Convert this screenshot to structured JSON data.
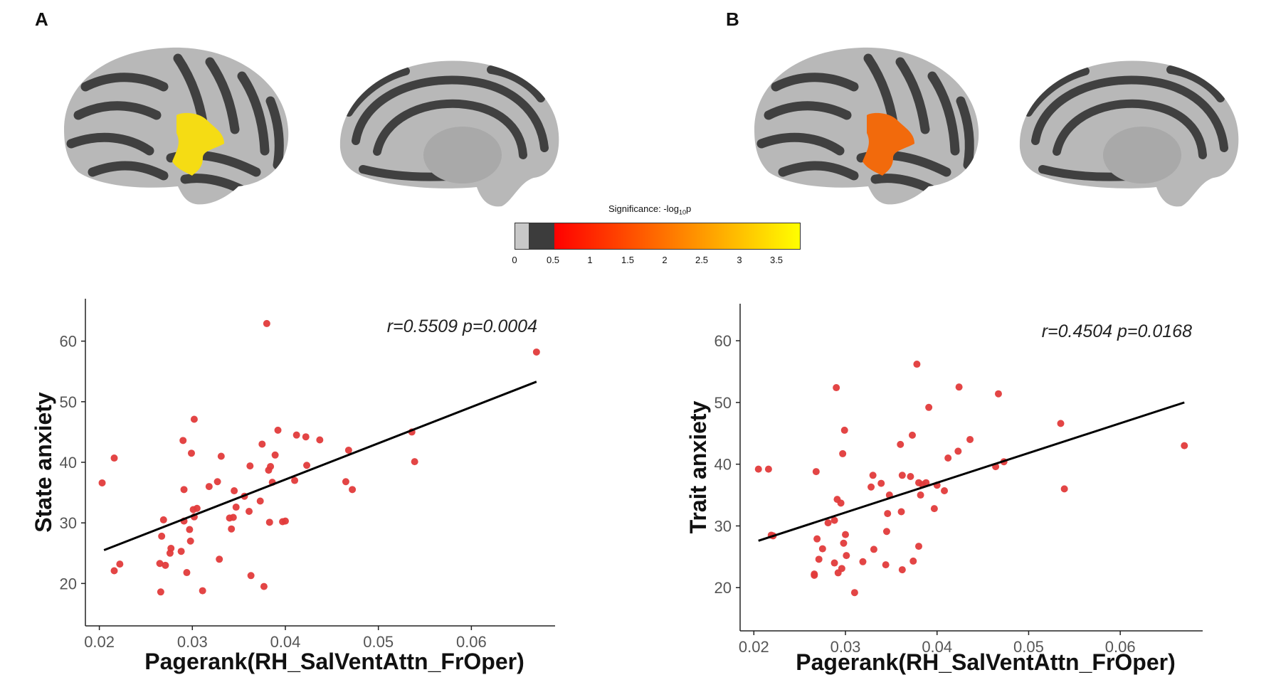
{
  "panels": [
    {
      "label": "A",
      "lateral_view": "left-lateral",
      "medial_view": "left-medial",
      "highlight_color": "#f5dc14"
    },
    {
      "label": "B",
      "lateral_view": "left-lateral",
      "medial_view": "left-medial",
      "highlight_color": "#f26a0c"
    }
  ],
  "colorbar": {
    "title_main": "Significance: -log",
    "title_sub": "10",
    "title_end": "p",
    "ticks": [
      "0",
      "0.5",
      "1",
      "1.5",
      "2",
      "2.5",
      "3",
      "3.5"
    ],
    "colors": {
      "gray_light": "#c8c8c8",
      "gray_dark": "#3c3c3c",
      "red": "#ff0000",
      "orange": "#ff8c00",
      "yellow": "#ffff00"
    }
  },
  "chart_data": [
    {
      "type": "scatter",
      "panel": "A",
      "annotation": "r=0.5509 p=0.0004",
      "xlabel": "Pagerank(RH_SalVentAttn_FrOper)",
      "ylabel": "State anxiety",
      "xlim": [
        0.0185,
        0.069
      ],
      "ylim": [
        13,
        67
      ],
      "xticks": [
        0.02,
        0.03,
        0.04,
        0.05,
        0.06
      ],
      "xtick_labels": [
        "0.02",
        "0.03",
        "0.04",
        "0.05",
        "0.06"
      ],
      "yticks": [
        20,
        30,
        40,
        50,
        60
      ],
      "ytick_labels": [
        "20",
        "30",
        "40",
        "50",
        "60"
      ],
      "point_color": "#e23b3b",
      "fit_line": {
        "x": [
          0.0205,
          0.067
        ],
        "y": [
          25.5,
          53.3
        ]
      },
      "points": [
        {
          "x": 0.0203,
          "y": 36.6
        },
        {
          "x": 0.0216,
          "y": 40.7
        },
        {
          "x": 0.0216,
          "y": 22.1
        },
        {
          "x": 0.0222,
          "y": 23.2
        },
        {
          "x": 0.0266,
          "y": 18.6
        },
        {
          "x": 0.0265,
          "y": 23.3
        },
        {
          "x": 0.0267,
          "y": 27.8
        },
        {
          "x": 0.0269,
          "y": 30.5
        },
        {
          "x": 0.0271,
          "y": 23.0
        },
        {
          "x": 0.0276,
          "y": 25.0
        },
        {
          "x": 0.0277,
          "y": 25.8
        },
        {
          "x": 0.0288,
          "y": 25.3
        },
        {
          "x": 0.029,
          "y": 43.6
        },
        {
          "x": 0.0291,
          "y": 35.5
        },
        {
          "x": 0.0291,
          "y": 30.3
        },
        {
          "x": 0.0294,
          "y": 21.8
        },
        {
          "x": 0.0297,
          "y": 28.9
        },
        {
          "x": 0.0298,
          "y": 27.0
        },
        {
          "x": 0.0299,
          "y": 41.5
        },
        {
          "x": 0.0301,
          "y": 32.2
        },
        {
          "x": 0.0302,
          "y": 47.1
        },
        {
          "x": 0.0302,
          "y": 31.0
        },
        {
          "x": 0.0305,
          "y": 32.4
        },
        {
          "x": 0.0311,
          "y": 18.8
        },
        {
          "x": 0.0318,
          "y": 36.0
        },
        {
          "x": 0.0327,
          "y": 36.8
        },
        {
          "x": 0.0329,
          "y": 24.0
        },
        {
          "x": 0.0331,
          "y": 41.0
        },
        {
          "x": 0.034,
          "y": 30.8
        },
        {
          "x": 0.0342,
          "y": 29.0
        },
        {
          "x": 0.0344,
          "y": 30.9
        },
        {
          "x": 0.0345,
          "y": 35.3
        },
        {
          "x": 0.0347,
          "y": 32.6
        },
        {
          "x": 0.0356,
          "y": 34.4
        },
        {
          "x": 0.0361,
          "y": 31.9
        },
        {
          "x": 0.0362,
          "y": 39.4
        },
        {
          "x": 0.0363,
          "y": 21.3
        },
        {
          "x": 0.0373,
          "y": 33.6
        },
        {
          "x": 0.0375,
          "y": 43.0
        },
        {
          "x": 0.0377,
          "y": 19.5
        },
        {
          "x": 0.038,
          "y": 62.9
        },
        {
          "x": 0.0382,
          "y": 38.7
        },
        {
          "x": 0.0383,
          "y": 30.1
        },
        {
          "x": 0.0384,
          "y": 39.3
        },
        {
          "x": 0.0386,
          "y": 36.7
        },
        {
          "x": 0.0389,
          "y": 41.2
        },
        {
          "x": 0.0392,
          "y": 45.3
        },
        {
          "x": 0.0397,
          "y": 30.2
        },
        {
          "x": 0.04,
          "y": 30.3
        },
        {
          "x": 0.041,
          "y": 37.0
        },
        {
          "x": 0.0412,
          "y": 44.5
        },
        {
          "x": 0.0422,
          "y": 44.2
        },
        {
          "x": 0.0423,
          "y": 39.5
        },
        {
          "x": 0.0437,
          "y": 43.7
        },
        {
          "x": 0.0465,
          "y": 36.8
        },
        {
          "x": 0.0468,
          "y": 42.0
        },
        {
          "x": 0.0472,
          "y": 35.5
        },
        {
          "x": 0.0536,
          "y": 45.0
        },
        {
          "x": 0.0539,
          "y": 40.1
        },
        {
          "x": 0.067,
          "y": 58.2
        }
      ]
    },
    {
      "type": "scatter",
      "panel": "B",
      "annotation": "r=0.4504 p=0.0168",
      "xlabel": "Pagerank(RH_SalVentAttn_FrOper)",
      "ylabel": "Trait anxiety",
      "xlim": [
        0.0185,
        0.069
      ],
      "ylim": [
        13,
        66
      ],
      "xticks": [
        0.02,
        0.03,
        0.04,
        0.05,
        0.06
      ],
      "xtick_labels": [
        "0.02",
        "0.03",
        "0.04",
        "0.05",
        "0.06"
      ],
      "yticks": [
        20,
        30,
        40,
        50,
        60
      ],
      "ytick_labels": [
        "20",
        "30",
        "40",
        "50",
        "60"
      ],
      "point_color": "#e23b3b",
      "fit_line": {
        "x": [
          0.0205,
          0.067
        ],
        "y": [
          27.6,
          50.0
        ]
      },
      "points": [
        {
          "x": 0.0205,
          "y": 39.2
        },
        {
          "x": 0.0216,
          "y": 39.2
        },
        {
          "x": 0.0219,
          "y": 28.5
        },
        {
          "x": 0.0221,
          "y": 28.4
        },
        {
          "x": 0.0266,
          "y": 22.0
        },
        {
          "x": 0.0266,
          "y": 22.2
        },
        {
          "x": 0.0268,
          "y": 38.8
        },
        {
          "x": 0.0269,
          "y": 27.9
        },
        {
          "x": 0.0271,
          "y": 24.6
        },
        {
          "x": 0.0275,
          "y": 26.3
        },
        {
          "x": 0.0281,
          "y": 30.5
        },
        {
          "x": 0.0288,
          "y": 30.9
        },
        {
          "x": 0.0288,
          "y": 24.0
        },
        {
          "x": 0.029,
          "y": 52.4
        },
        {
          "x": 0.0291,
          "y": 34.3
        },
        {
          "x": 0.0292,
          "y": 22.4
        },
        {
          "x": 0.0295,
          "y": 33.7
        },
        {
          "x": 0.0296,
          "y": 23.1
        },
        {
          "x": 0.0297,
          "y": 41.7
        },
        {
          "x": 0.0298,
          "y": 27.2
        },
        {
          "x": 0.0299,
          "y": 45.5
        },
        {
          "x": 0.03,
          "y": 28.6
        },
        {
          "x": 0.0301,
          "y": 25.2
        },
        {
          "x": 0.031,
          "y": 19.2
        },
        {
          "x": 0.0319,
          "y": 24.2
        },
        {
          "x": 0.0328,
          "y": 36.3
        },
        {
          "x": 0.033,
          "y": 38.2
        },
        {
          "x": 0.0331,
          "y": 26.2
        },
        {
          "x": 0.0339,
          "y": 36.9
        },
        {
          "x": 0.0344,
          "y": 23.7
        },
        {
          "x": 0.0346,
          "y": 32.0
        },
        {
          "x": 0.0345,
          "y": 29.1
        },
        {
          "x": 0.0348,
          "y": 35.0
        },
        {
          "x": 0.036,
          "y": 43.2
        },
        {
          "x": 0.0361,
          "y": 32.3
        },
        {
          "x": 0.0362,
          "y": 38.2
        },
        {
          "x": 0.0362,
          "y": 22.9
        },
        {
          "x": 0.0371,
          "y": 38.0
        },
        {
          "x": 0.0373,
          "y": 44.7
        },
        {
          "x": 0.0374,
          "y": 24.3
        },
        {
          "x": 0.0378,
          "y": 56.2
        },
        {
          "x": 0.038,
          "y": 37.0
        },
        {
          "x": 0.038,
          "y": 26.7
        },
        {
          "x": 0.0382,
          "y": 35.0
        },
        {
          "x": 0.0384,
          "y": 36.7
        },
        {
          "x": 0.0388,
          "y": 37.0
        },
        {
          "x": 0.0391,
          "y": 49.2
        },
        {
          "x": 0.0397,
          "y": 32.8
        },
        {
          "x": 0.04,
          "y": 36.6
        },
        {
          "x": 0.0408,
          "y": 35.7
        },
        {
          "x": 0.0412,
          "y": 41.0
        },
        {
          "x": 0.0423,
          "y": 42.1
        },
        {
          "x": 0.0424,
          "y": 52.5
        },
        {
          "x": 0.0436,
          "y": 44.0
        },
        {
          "x": 0.0464,
          "y": 39.6
        },
        {
          "x": 0.0467,
          "y": 51.4
        },
        {
          "x": 0.0473,
          "y": 40.4
        },
        {
          "x": 0.0535,
          "y": 46.6
        },
        {
          "x": 0.0539,
          "y": 36.0
        },
        {
          "x": 0.067,
          "y": 43.0
        }
      ]
    }
  ]
}
